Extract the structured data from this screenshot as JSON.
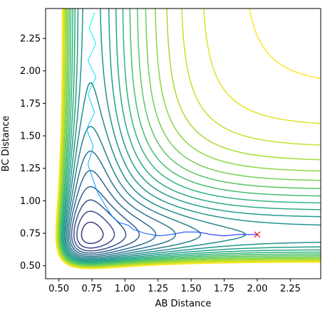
{
  "chart_data": {
    "type": "contour",
    "title": "",
    "xlabel": "AB Distance",
    "ylabel": "BC Distance",
    "xlim": [
      0.4,
      2.48
    ],
    "ylim": [
      0.4,
      2.48
    ],
    "x_ticks": [
      "0.50",
      "0.75",
      "1.00",
      "1.25",
      "1.50",
      "1.75",
      "2.00",
      "2.25"
    ],
    "y_ticks": [
      "0.50",
      "0.75",
      "1.00",
      "1.25",
      "1.50",
      "1.75",
      "2.00",
      "2.25"
    ],
    "grid": false,
    "colormap": "viridis",
    "contour_levels": 24,
    "series": [
      {
        "kind": "trajectory",
        "colors": [
          "#00ffff",
          "#0000ff"
        ],
        "x": [
          0.77,
          0.73,
          0.78,
          0.72,
          0.78,
          0.72,
          0.77,
          0.71,
          0.76,
          0.72,
          0.76,
          0.79,
          0.83,
          0.87,
          0.91,
          0.96,
          1.0,
          1.03,
          1.06,
          1.15,
          1.25,
          1.35,
          1.45,
          1.55,
          1.65,
          1.75,
          1.85,
          1.95,
          2.0
        ],
        "y": [
          2.45,
          2.33,
          2.21,
          2.08,
          1.95,
          1.82,
          1.68,
          1.55,
          1.42,
          1.28,
          1.16,
          1.07,
          1.0,
          0.93,
          0.87,
          0.83,
          0.82,
          0.81,
          0.78,
          0.75,
          0.73,
          0.74,
          0.76,
          0.76,
          0.74,
          0.73,
          0.74,
          0.74,
          0.74
        ]
      },
      {
        "kind": "marker",
        "marker": "x",
        "color": "#ff0000",
        "x": [
          2.0
        ],
        "y": [
          0.74
        ]
      }
    ]
  }
}
